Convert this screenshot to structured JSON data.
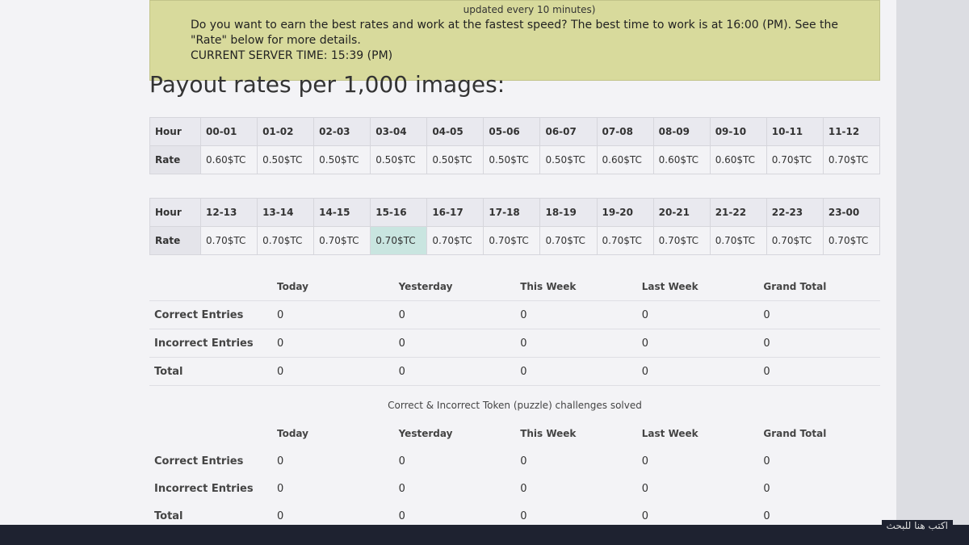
{
  "notice": {
    "update_note": "updated every 10 minutes)",
    "message": "Do you want to earn the best rates and work at the fastest speed? The best time to work is at 16:00 (PM). See the \"Rate\" below for more details.",
    "server_time": "CURRENT SERVER TIME: 15:39 (PM)"
  },
  "title": "Payout rates per 1,000 images:",
  "rate_tables": [
    {
      "hour_label": "Hour",
      "rate_label": "Rate",
      "hours": [
        "00-01",
        "01-02",
        "02-03",
        "03-04",
        "04-05",
        "05-06",
        "06-07",
        "07-08",
        "08-09",
        "09-10",
        "10-11",
        "11-12"
      ],
      "rates": [
        "0.60$TC",
        "0.50$TC",
        "0.50$TC",
        "0.50$TC",
        "0.50$TC",
        "0.50$TC",
        "0.50$TC",
        "0.60$TC",
        "0.60$TC",
        "0.60$TC",
        "0.70$TC",
        "0.70$TC"
      ]
    },
    {
      "hour_label": "Hour",
      "rate_label": "Rate",
      "hours": [
        "12-13",
        "13-14",
        "14-15",
        "15-16",
        "16-17",
        "17-18",
        "18-19",
        "19-20",
        "20-21",
        "21-22",
        "22-23",
        "23-00"
      ],
      "rates": [
        "0.70$TC",
        "0.70$TC",
        "0.70$TC",
        "0.70$TC",
        "0.70$TC",
        "0.70$TC",
        "0.70$TC",
        "0.70$TC",
        "0.70$TC",
        "0.70$TC",
        "0.70$TC",
        "0.70$TC"
      ]
    }
  ],
  "stats_tables": [
    {
      "columns": [
        "Today",
        "Yesterday",
        "This Week",
        "Last Week",
        "Grand Total"
      ],
      "rows": [
        {
          "label": "Correct Entries",
          "values": [
            0,
            0,
            0,
            0,
            0
          ]
        },
        {
          "label": "Incorrect Entries",
          "values": [
            0,
            0,
            0,
            0,
            0
          ]
        },
        {
          "label": "Total",
          "values": [
            0,
            0,
            0,
            0,
            0
          ]
        }
      ]
    },
    {
      "caption": "Correct & Incorrect Token (puzzle) challenges solved",
      "columns": [
        "Today",
        "Yesterday",
        "This Week",
        "Last Week",
        "Grand Total"
      ],
      "rows": [
        {
          "label": "Correct Entries",
          "values": [
            0,
            0,
            0,
            0,
            0
          ]
        },
        {
          "label": "Incorrect Entries",
          "values": [
            0,
            0,
            0,
            0,
            0
          ]
        },
        {
          "label": "Total",
          "values": [
            0,
            0,
            0,
            0,
            0
          ]
        }
      ]
    }
  ],
  "taskbar": {
    "search": "اكتب هنا للبحث"
  }
}
